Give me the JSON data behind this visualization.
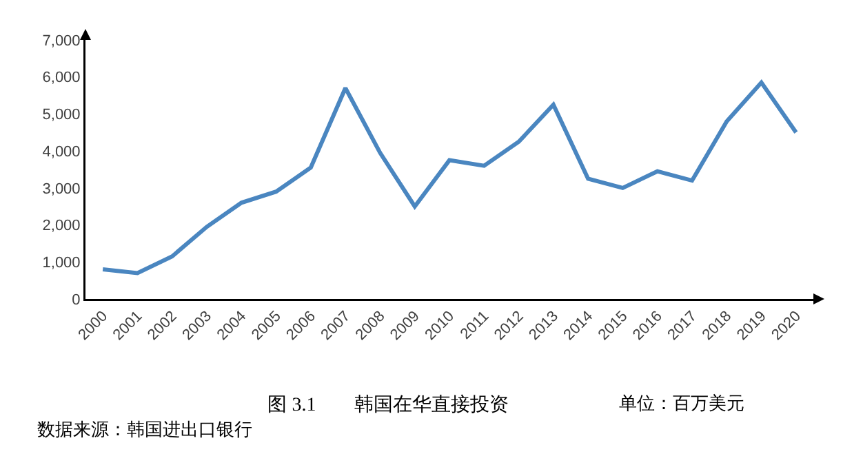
{
  "chart_data": {
    "type": "line",
    "title": "图 3.1　　韩国在华直接投资",
    "subtitle": "单位：百万美元",
    "categories": [
      "2000",
      "2001",
      "2002",
      "2003",
      "2004",
      "2005",
      "2006",
      "2007",
      "2008",
      "2009",
      "2010",
      "2011",
      "2012",
      "2013",
      "2014",
      "2015",
      "2016",
      "2017",
      "2018",
      "2019",
      "2020"
    ],
    "series": [
      {
        "color": "#4a86c0",
        "values": [
          800,
          700,
          1150,
          1950,
          2600,
          2900,
          3550,
          5700,
          3950,
          2500,
          3750,
          3600,
          4250,
          5250,
          3250,
          3000,
          3450,
          3200,
          4800,
          5850,
          4500
        ]
      }
    ],
    "ylim": [
      0,
      7000
    ],
    "yticks": [
      0,
      {
        "value": 1000,
        "label": "1,000"
      },
      {
        "value": 2000,
        "label": "2,000"
      },
      {
        "value": 3000,
        "label": "3,000"
      },
      {
        "value": 4000,
        "label": "4,000"
      },
      {
        "value": 5000,
        "label": "5,000"
      },
      {
        "value": 6000,
        "label": "6,000"
      },
      {
        "value": 7000,
        "label": "7,000"
      }
    ],
    "grid": false,
    "marker": "none",
    "line_style": "solid",
    "annotations": [
      "数据来源：韩国进出口银行"
    ]
  }
}
